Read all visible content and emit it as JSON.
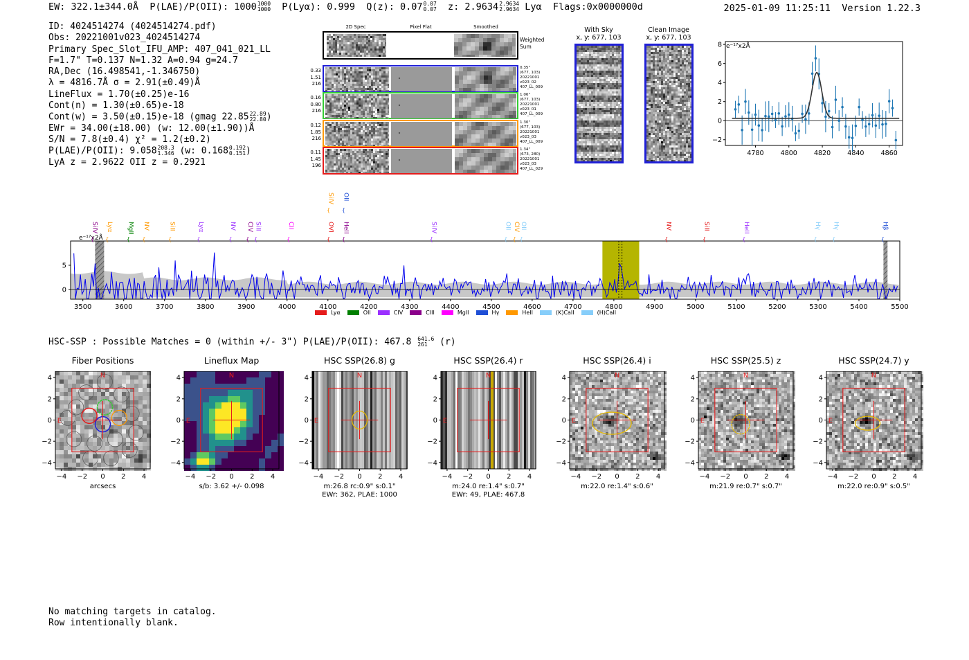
{
  "header": {
    "ew_label": "EW: 322.1±344.0Å",
    "plae_label": "P(LAE)/P(OII): 1000",
    "plae_hi": "1000",
    "plae_lo": "1000",
    "plya_label": "P(Lyα): 0.999",
    "qz_label": "Q(z): 0.07",
    "qz_hi": "0.07",
    "qz_lo": "0.07",
    "z_label": "z: 2.9634",
    "z_hi": "2.9634",
    "z_lo": "2.9634",
    "line_label": "Lyα",
    "flags_label": "Flags:0x0000000d",
    "datetime": "2025-01-09 11:25:11",
    "version": "Version 1.22.3"
  },
  "info": {
    "id": "ID: 4024514274 (4024514274.pdf)",
    "obs": "Obs: 20221001v023_4024514274",
    "primary": "Primary Spec_Slot_IFU_AMP: 407_041_021_LL",
    "params": "F=1.7\"  T=0.137  N=1.32  A=0.94  g=24.7",
    "radec": "RA,Dec (16.498541,-1.346750)",
    "lambda_sigma": "λ = 4816.7Å   σ = 2.91(±0.49)Å",
    "lineflux": "LineFlux = 1.70(±0.25)e-16",
    "cont_n": "Cont(n) = 1.30(±0.65)e-18",
    "cont_w": "Cont(w) = 3.50(±0.15)e-18 (gmag 22.85",
    "cont_w_hi": "22.89",
    "cont_w_lo": "22.80",
    "cont_w_close": ")",
    "ewr": "EWr = 34.00(±18.00) (w: 12.00(±1.90))Å",
    "sn_chi": "S/N = 7.8(±0.4)  χ² = 1.2(±0.2)",
    "plae": "P(LAE)/P(OII): 9.058",
    "plae_hi": "208.3",
    "plae_lo": "1.346",
    "plae_w": " (w: 0.168",
    "plae_w_hi": "0.192",
    "plae_w_lo": "0.151",
    "plae_w_close": ")",
    "lya_oii": "LyA z = 2.9622   OII z = 0.2921"
  },
  "cutouts": {
    "col_2d": "2D Spec",
    "col_flat": "Pixel Flat",
    "col_smooth": "Smoothed",
    "weighted": [
      "Weighted",
      "Sum"
    ],
    "fibers": [
      {
        "nums": [
          "0.33",
          "1.51",
          "216"
        ],
        "color": "#1f1fd6",
        "text": [
          "0.35\"",
          "(677, 103)",
          "20221001",
          "v023_02",
          "407_LL_009"
        ]
      },
      {
        "nums": [
          "0.16",
          "0.80",
          "216"
        ],
        "color": "#33cc33",
        "text": [
          "1.06\"",
          "(677, 103)",
          "20221001",
          "v023_01",
          "407_LL_009"
        ]
      },
      {
        "nums": [
          "0.12",
          "1.85",
          "216"
        ],
        "color": "#ff9900",
        "text": [
          "1.30\"",
          "(677, 103)",
          "20221001",
          "v023_03",
          "407_LL_009"
        ]
      },
      {
        "nums": [
          "0.11",
          "1.45",
          "196"
        ],
        "color": "#e51c1c",
        "text": [
          "1.34\"",
          "(673, 280)",
          "20221001",
          "v023_03",
          "407_LL_029"
        ]
      }
    ],
    "with_sky_title": "With Sky",
    "with_sky_xy": "x, y: 677, 103",
    "clean_title": "Clean Image",
    "clean_xy": "x, y: 677, 103"
  },
  "zoom_plot": {
    "ylabel": "e⁻¹⁷x2Å",
    "x_ticks": [
      "4780",
      "4800",
      "4820",
      "4840",
      "4860"
    ],
    "y_ticks": [
      "8",
      "6",
      "4",
      "2",
      "0",
      "−2"
    ]
  },
  "spectrum": {
    "ylabel": "e⁻¹⁷x2Å",
    "y_ticks": [
      "5",
      "0"
    ],
    "x_ticks": [
      "3500",
      "3600",
      "3700",
      "3800",
      "3900",
      "4000",
      "4100",
      "4200",
      "4300",
      "4400",
      "4500",
      "4600",
      "4700",
      "4800",
      "4900",
      "5000",
      "5100",
      "5200",
      "5300",
      "5400",
      "5500"
    ],
    "line_labels": [
      {
        "label": "SiIV",
        "color": "#8b008b",
        "w": 3520
      },
      {
        "label": "Lyα",
        "color": "#ff9900",
        "w": 3556
      },
      {
        "label": "MgII",
        "color": "#008000",
        "w": 3608
      },
      {
        "label": "NV",
        "color": "#ff9900",
        "w": 3646
      },
      {
        "label": "SiII",
        "color": "#ff9900",
        "w": 3710
      },
      {
        "label": "Lyα",
        "color": "#9b30ff",
        "w": 3780
      },
      {
        "label": "NV",
        "color": "#9b30ff",
        "w": 3858
      },
      {
        "label": "CIV",
        "color": "#8b008b",
        "w": 3900
      },
      {
        "label": "SiII",
        "color": "#9b30ff",
        "w": 3920
      },
      {
        "label": "CII",
        "color": "#ff00ff",
        "w": 4000
      },
      {
        "label": "OVI",
        "color": "#e51c1c",
        "w": 4098
      },
      {
        "label": "SiIV",
        "color": "#ff9900",
        "w": 4098
      },
      {
        "label": "HeII",
        "color": "#8b008b",
        "w": 4135
      },
      {
        "label": "OII",
        "color": "#1f4fd6",
        "w": 4135
      },
      {
        "label": "SiIV",
        "color": "#9b30ff",
        "w": 4350
      },
      {
        "label": "OII",
        "color": "#87cefa",
        "w": 4532
      },
      {
        "label": "CIV",
        "color": "#ff9900",
        "w": 4553
      },
      {
        "label": "OII",
        "color": "#87cefa",
        "w": 4570
      },
      {
        "label": "NV",
        "color": "#e51c1c",
        "w": 4925
      },
      {
        "label": "SiII",
        "color": "#e51c1c",
        "w": 5018
      },
      {
        "label": "HeII",
        "color": "#9b30ff",
        "w": 5115
      },
      {
        "label": "Hγ",
        "color": "#87cefa",
        "w": 5290
      },
      {
        "label": "Hγ",
        "color": "#87cefa",
        "w": 5335
      },
      {
        "label": "Hβ",
        "color": "#1f4fd6",
        "w": 5455
      }
    ]
  },
  "legend": [
    {
      "label": "Lyα",
      "color": "#e51c1c"
    },
    {
      "label": "OII",
      "color": "#008000"
    },
    {
      "label": "CIV",
      "color": "#9b30ff"
    },
    {
      "label": "CIII",
      "color": "#8b008b"
    },
    {
      "label": "MgII",
      "color": "#ff00ff"
    },
    {
      "label": "Hγ",
      "color": "#1f4fd6"
    },
    {
      "label": "HeII",
      "color": "#ff9900"
    },
    {
      "label": "(K)CaII",
      "color": "#87cefa"
    },
    {
      "label": "(H)CaII",
      "color": "#87cefa"
    }
  ],
  "hsc": {
    "line": "HSC-SSP : Possible Matches = 0 (within +/- 3\")  P(LAE)/P(OII): 467.8",
    "hi": "641.6",
    "lo": "261",
    "suffix": " (r)"
  },
  "thumbs": [
    {
      "title": "Fiber Positions",
      "cap1": "arcsecs",
      "cap2": ""
    },
    {
      "title": "Lineflux Map",
      "cap1": "s/b: 3.62 +/- 0.098",
      "cap2": ""
    },
    {
      "title": "HSC SSP(26.8) g",
      "cap1": "m:26.8  rc:0.9\"  s:0.1\"",
      "cap2": "EWr: 362, PLAE: 1000"
    },
    {
      "title": "HSC SSP(26.4) r",
      "cap1": "m:24.0  re:1.4\"  s:0.7\"",
      "cap2": "EWr: 49, PLAE: 467.8"
    },
    {
      "title": "HSC SSP(26.4) i",
      "cap1": "m:22.0  re:1.4\"  s:0.6\"",
      "cap2": ""
    },
    {
      "title": "HSC SSP(25.5) z",
      "cap1": "m:21.9  re:0.7\"  s:0.7\"",
      "cap2": ""
    },
    {
      "title": "HSC SSP(24.7) y",
      "cap1": "m:22.0  re:0.9\"  s:0.5\"",
      "cap2": ""
    }
  ],
  "thumb_axis": {
    "ticks_y": [
      "4",
      "2",
      "0",
      "−2",
      "−4"
    ],
    "ticks_x": [
      "−4",
      "−2",
      "0",
      "2",
      "4"
    ],
    "north": "N",
    "east": "E"
  },
  "footer": {
    "line1": "No matching targets in catalog.",
    "line2": "Row intentionally blank."
  }
}
